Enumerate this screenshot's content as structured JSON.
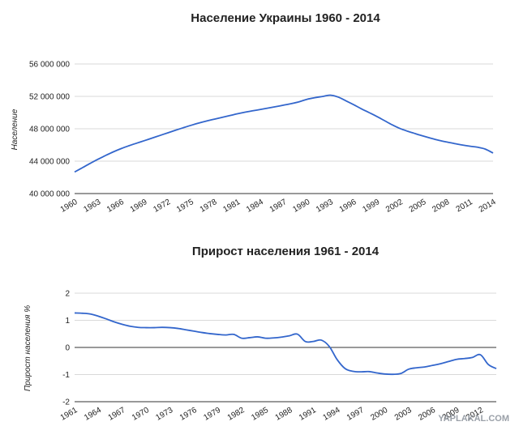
{
  "watermark": "YAPLAKAL.COM",
  "chart_data": [
    {
      "type": "line",
      "title": "Население Украины 1960 - 2014",
      "ylabel": "Население",
      "xlabel": "",
      "xlim": [
        1960,
        2014
      ],
      "ylim": [
        40000000,
        56000000
      ],
      "x_ticks": [
        1960,
        1963,
        1966,
        1969,
        1972,
        1975,
        1978,
        1981,
        1984,
        1987,
        1990,
        1993,
        1996,
        1999,
        2002,
        2005,
        2008,
        2011,
        2014
      ],
      "y_ticks": [
        40000000,
        44000000,
        48000000,
        52000000,
        56000000
      ],
      "y_tick_labels": [
        "40 000 000",
        "44 000 000",
        "48 000 000",
        "52 000 000",
        "56 000 000"
      ],
      "color": "#3366cc",
      "grid": true,
      "series": [
        {
          "x": [
            1960,
            1961,
            1962,
            1963,
            1964,
            1965,
            1966,
            1967,
            1968,
            1969,
            1970,
            1971,
            1972,
            1973,
            1974,
            1975,
            1976,
            1977,
            1978,
            1979,
            1980,
            1981,
            1982,
            1983,
            1984,
            1985,
            1986,
            1987,
            1988,
            1989,
            1990,
            1991,
            1992,
            1993,
            1994,
            1995,
            1996,
            1997,
            1998,
            1999,
            2000,
            2001,
            2002,
            2003,
            2004,
            2005,
            2006,
            2007,
            2008,
            2009,
            2010,
            2011,
            2012,
            2013,
            2014
          ],
          "values": [
            42660000,
            43190000,
            43720000,
            44230000,
            44700000,
            45150000,
            45550000,
            45900000,
            46220000,
            46530000,
            46850000,
            47170000,
            47490000,
            47810000,
            48120000,
            48420000,
            48700000,
            48950000,
            49180000,
            49400000,
            49620000,
            49850000,
            50050000,
            50220000,
            50390000,
            50560000,
            50740000,
            50920000,
            51110000,
            51340000,
            51640000,
            51840000,
            51990000,
            52150000,
            51920000,
            51460000,
            50980000,
            50470000,
            50000000,
            49520000,
            49000000,
            48480000,
            48030000,
            47690000,
            47390000,
            47100000,
            46830000,
            46580000,
            46370000,
            46180000,
            46000000,
            45850000,
            45720000,
            45490000,
            45000000
          ]
        }
      ]
    },
    {
      "type": "line",
      "title": "Прирост населения 1961 - 2014",
      "ylabel": "Прирост населения %",
      "xlabel": "",
      "xlim": [
        1961,
        2014
      ],
      "ylim": [
        -2,
        2
      ],
      "x_ticks": [
        1961,
        1964,
        1967,
        1970,
        1973,
        1976,
        1979,
        1982,
        1985,
        1988,
        1991,
        1994,
        1997,
        2000,
        2003,
        2006,
        2009,
        2012
      ],
      "y_ticks": [
        -2,
        -1,
        0,
        1,
        2
      ],
      "y_tick_labels": [
        "-2",
        "-1",
        "0",
        "1",
        "2"
      ],
      "color": "#3366cc",
      "grid": true,
      "series": [
        {
          "x": [
            1961,
            1962,
            1963,
            1964,
            1965,
            1966,
            1967,
            1968,
            1969,
            1970,
            1971,
            1972,
            1973,
            1974,
            1975,
            1976,
            1977,
            1978,
            1979,
            1980,
            1981,
            1982,
            1983,
            1984,
            1985,
            1986,
            1987,
            1988,
            1989,
            1990,
            1991,
            1992,
            1993,
            1994,
            1995,
            1996,
            1997,
            1998,
            1999,
            2000,
            2001,
            2002,
            2003,
            2004,
            2005,
            2006,
            2007,
            2008,
            2009,
            2010,
            2011,
            2012,
            2013,
            2014
          ],
          "values": [
            1.27,
            1.26,
            1.23,
            1.15,
            1.05,
            0.94,
            0.85,
            0.78,
            0.74,
            0.73,
            0.73,
            0.74,
            0.73,
            0.7,
            0.65,
            0.6,
            0.55,
            0.51,
            0.48,
            0.46,
            0.48,
            0.34,
            0.36,
            0.39,
            0.34,
            0.35,
            0.38,
            0.43,
            0.49,
            0.22,
            0.22,
            0.27,
            0.04,
            -0.45,
            -0.78,
            -0.88,
            -0.9,
            -0.89,
            -0.94,
            -0.98,
            -0.99,
            -0.96,
            -0.8,
            -0.75,
            -0.72,
            -0.66,
            -0.6,
            -0.52,
            -0.44,
            -0.41,
            -0.37,
            -0.27,
            -0.63,
            -0.78
          ]
        }
      ]
    }
  ]
}
